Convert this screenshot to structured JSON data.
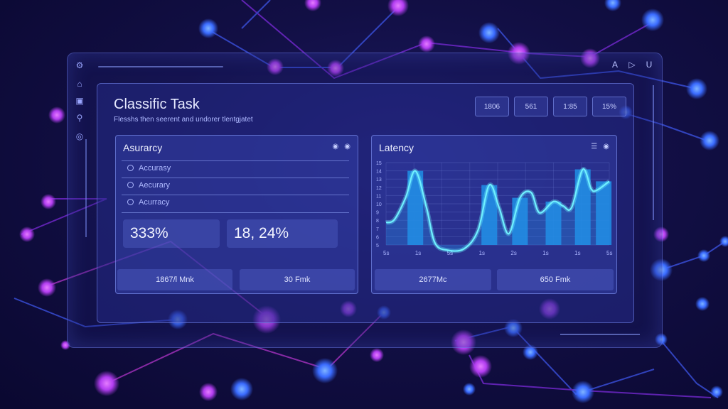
{
  "header": {
    "title": "Classific Task",
    "subtitle": "Flesshs then seerent and undorer tlentgjatet",
    "chips": [
      "1806",
      "561",
      "1:85",
      "15%"
    ]
  },
  "window": {
    "top_icons": [
      "A",
      "▷",
      "U"
    ]
  },
  "accuracy": {
    "title": "Asurarcy",
    "rows": [
      "Accurasy",
      "Aecurary",
      "Acurracy"
    ],
    "metric_left": "333%",
    "metric_right": "18, 24%",
    "foot_left": "1867/l Mnk",
    "foot_right": "30 Fmk"
  },
  "latency": {
    "title": "Latency",
    "foot_left": "2677Mc",
    "foot_right": "650 Fmk"
  },
  "chart_data": {
    "type": "area",
    "title": "Latency",
    "y_ticks": [
      "15",
      "14",
      "13",
      "12",
      "11",
      "10",
      "9",
      "8",
      "7",
      "6",
      "5"
    ],
    "x_ticks": [
      "5s",
      "1s",
      "5s",
      "1s",
      "2s",
      "1s",
      "1s",
      "5s"
    ],
    "points": [
      [
        0,
        7
      ],
      [
        0.3,
        7.4
      ],
      [
        0.7,
        10.3
      ],
      [
        1.05,
        13.9
      ],
      [
        1.45,
        9
      ],
      [
        1.75,
        4.3
      ],
      [
        2.2,
        3.3
      ],
      [
        2.8,
        3.5
      ],
      [
        3.3,
        6
      ],
      [
        3.7,
        12
      ],
      [
        4.05,
        9
      ],
      [
        4.4,
        5.5
      ],
      [
        4.8,
        10.3
      ],
      [
        5.2,
        11
      ],
      [
        5.5,
        8.3
      ],
      [
        6.0,
        9.8
      ],
      [
        6.35,
        9.2
      ],
      [
        6.65,
        9
      ],
      [
        7.05,
        14.1
      ],
      [
        7.35,
        11.5
      ],
      [
        7.55,
        11.3
      ],
      [
        8.0,
        12.5
      ]
    ],
    "bars": [
      {
        "x": 1.05,
        "value": 13.9
      },
      {
        "x": 3.7,
        "value": 12
      },
      {
        "x": 4.8,
        "value": 10.3
      },
      {
        "x": 6.0,
        "value": 9.8
      },
      {
        "x": 7.05,
        "value": 14.1
      },
      {
        "x": 7.8,
        "value": 12.5
      }
    ],
    "ylim": [
      4,
      15
    ],
    "xlim": [
      0,
      8
    ],
    "colors": {
      "line": "#6ff0ff",
      "fill": "#1e8fe6"
    }
  }
}
